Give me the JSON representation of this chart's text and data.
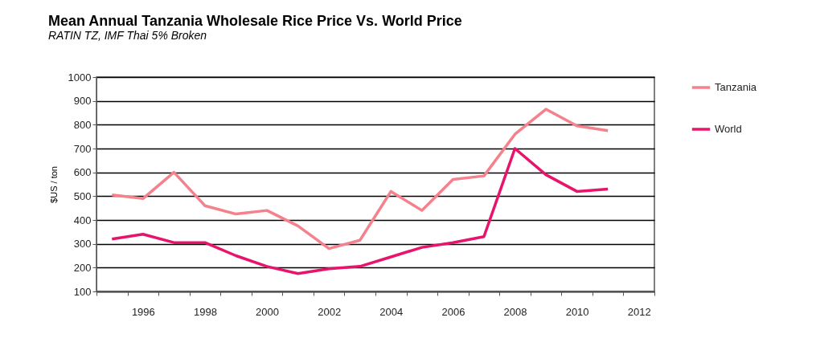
{
  "chart_data": {
    "type": "line",
    "title": "Mean Annual Tanzania  Wholesale Rice Price Vs. World Price",
    "subtitle": "RATIN TZ,  IMF Thai 5% Broken",
    "ylabel": "$US / ton",
    "categories": [
      null,
      "1996",
      null,
      "1998",
      null,
      "2000",
      null,
      "2002",
      null,
      "2004",
      null,
      "2006",
      null,
      "2008",
      null,
      "2010",
      null,
      "2012"
    ],
    "series": [
      {
        "name": "Tanzania",
        "color": "#f4818c",
        "values": [
          505,
          490,
          600,
          460,
          425,
          440,
          375,
          280,
          315,
          520,
          440,
          570,
          585,
          760,
          865,
          795,
          775,
          null
        ]
      },
      {
        "name": "World",
        "color": "#e8146c",
        "values": [
          320,
          340,
          305,
          305,
          250,
          205,
          175,
          195,
          205,
          245,
          285,
          305,
          330,
          700,
          590,
          520,
          530,
          null
        ]
      }
    ],
    "ylim": [
      100,
      1000
    ],
    "yticks": [
      100,
      200,
      300,
      400,
      500,
      600,
      700,
      800,
      900,
      1000
    ],
    "grid": "y",
    "legend": "right",
    "marker": "none",
    "line_style": "solid"
  }
}
